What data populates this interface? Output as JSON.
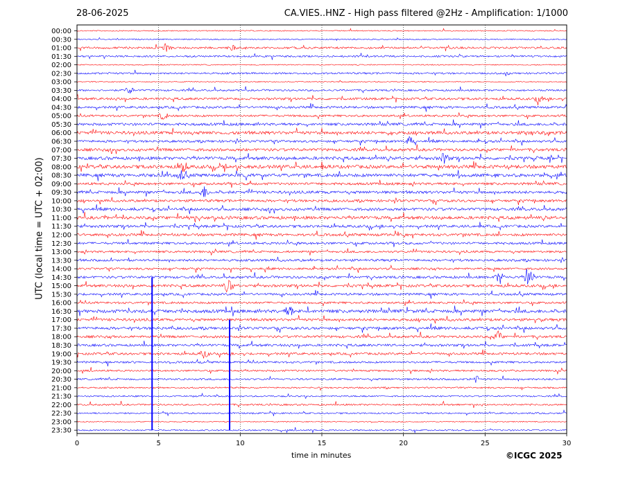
{
  "header": {
    "date": "28-06-2025",
    "title": "CA.VIES..HNZ - High pass filtered @2Hz - Amplification: 1/1000"
  },
  "footer": {
    "xlabel": "time in minutes",
    "copyright": "©ICGC 2025"
  },
  "colors": {
    "red": "#ff0000",
    "blue": "#0000ff",
    "grid": "#000000"
  },
  "chart_data": {
    "type": "line",
    "title": "CA.VIES..HNZ - High pass filtered @2Hz - Amplification: 1/1000",
    "xlabel": "time in minutes",
    "ylabel": "UTC (local time = UTC + 02:00)",
    "xlim": [
      0,
      30
    ],
    "x_ticks": [
      "0",
      "5",
      "10",
      "15",
      "20",
      "25",
      "30"
    ],
    "x_gridlines": [
      5,
      10,
      15,
      20,
      25
    ],
    "row_labels": [
      "00:00",
      "00:30",
      "01:00",
      "01:30",
      "02:00",
      "02:30",
      "03:00",
      "03:30",
      "04:00",
      "04:30",
      "05:00",
      "05:30",
      "06:00",
      "06:30",
      "07:00",
      "07:30",
      "08:00",
      "08:30",
      "09:00",
      "09:30",
      "10:00",
      "10:30",
      "11:00",
      "11:30",
      "12:00",
      "12:30",
      "13:00",
      "13:30",
      "14:00",
      "14:30",
      "15:00",
      "15:30",
      "16:00",
      "16:30",
      "17:00",
      "17:30",
      "18:00",
      "18:30",
      "19:00",
      "19:30",
      "20:00",
      "20:30",
      "21:00",
      "21:30",
      "22:00",
      "22:30",
      "23:00",
      "23:30"
    ],
    "row_colors": [
      "red",
      "blue",
      "red",
      "blue",
      "red",
      "blue",
      "red",
      "blue",
      "red",
      "blue",
      "red",
      "blue",
      "red",
      "blue",
      "red",
      "blue",
      "red",
      "blue",
      "red",
      "blue",
      "red",
      "blue",
      "red",
      "blue",
      "red",
      "blue",
      "red",
      "blue",
      "red",
      "blue",
      "red",
      "blue",
      "red",
      "blue",
      "red",
      "blue",
      "red",
      "blue",
      "red",
      "blue",
      "red",
      "blue",
      "red",
      "blue",
      "red",
      "blue",
      "red",
      "blue"
    ],
    "row_activity": [
      0.05,
      0.08,
      0.35,
      0.3,
      0.05,
      0.3,
      0.05,
      0.3,
      0.45,
      0.45,
      0.4,
      0.55,
      0.7,
      0.45,
      0.6,
      0.7,
      0.8,
      0.75,
      0.5,
      0.6,
      0.5,
      0.6,
      0.7,
      0.55,
      0.55,
      0.45,
      0.4,
      0.45,
      0.4,
      0.5,
      0.55,
      0.45,
      0.4,
      0.75,
      0.55,
      0.55,
      0.5,
      0.5,
      0.45,
      0.35,
      0.3,
      0.3,
      0.2,
      0.2,
      0.25,
      0.2,
      0.03,
      0.15
    ],
    "events": [
      {
        "row": 2,
        "minute": 5.5,
        "amp": 0.5
      },
      {
        "row": 2,
        "minute": 9.5,
        "amp": 0.4
      },
      {
        "row": 7,
        "minute": 3.2,
        "amp": 0.6
      },
      {
        "row": 8,
        "minute": 28.3,
        "amp": 0.6
      },
      {
        "row": 10,
        "minute": 5.3,
        "amp": 0.6
      },
      {
        "row": 13,
        "minute": 20.4,
        "amp": 0.7
      },
      {
        "row": 15,
        "minute": 22.5,
        "amp": 0.9
      },
      {
        "row": 16,
        "minute": 6.5,
        "amp": 0.9
      },
      {
        "row": 17,
        "minute": 6.4,
        "amp": 0.7
      },
      {
        "row": 19,
        "minute": 7.8,
        "amp": 0.9
      },
      {
        "row": 29,
        "minute": 25.9,
        "amp": 1.0
      },
      {
        "row": 29,
        "minute": 27.7,
        "amp": 2.0
      },
      {
        "row": 30,
        "minute": 9.3,
        "amp": 1.2
      },
      {
        "row": 33,
        "minute": 13.0,
        "amp": 0.9
      },
      {
        "row": 36,
        "minute": 25.8,
        "amp": 0.8
      },
      {
        "row": 38,
        "minute": 7.8,
        "amp": 0.7
      },
      {
        "row": 41,
        "minute": 24.4,
        "amp": 0.6
      }
    ],
    "spikes": [
      {
        "minute": 4.6,
        "from_row": 29,
        "to_row": 47
      },
      {
        "minute": 9.35,
        "from_row": 34,
        "to_row": 47
      }
    ]
  }
}
